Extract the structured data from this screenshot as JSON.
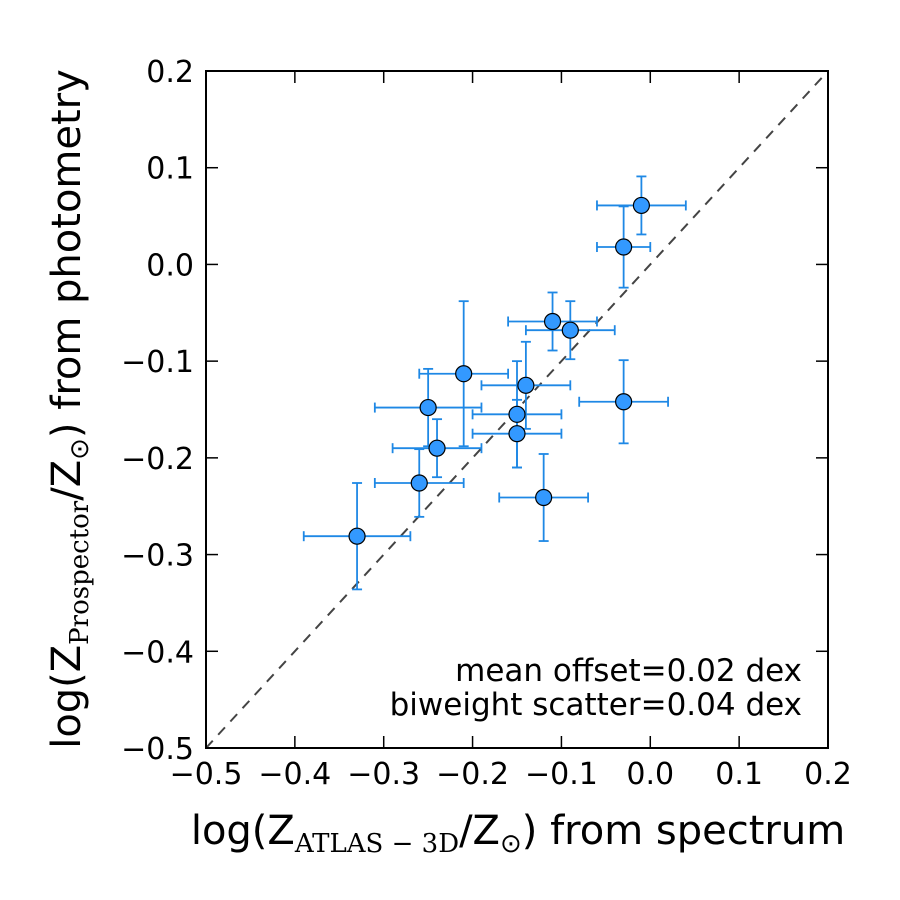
{
  "chart_data": {
    "type": "scatter",
    "xlabel": {
      "prefix": "log(Z",
      "subscript": "ATLAS − 3D",
      "suffix": "/Z",
      "sun_symbol": "⊙",
      "tail": ") from spectrum"
    },
    "ylabel": {
      "prefix": "log(Z",
      "subscript": "Prospector",
      "suffix": "/Z",
      "sun_symbol": "⊙",
      "tail": ") from photometry"
    },
    "xlim": [
      -0.5,
      0.2
    ],
    "ylim": [
      -0.5,
      0.2
    ],
    "xticks": [
      -0.5,
      -0.4,
      -0.3,
      -0.2,
      -0.1,
      0.0,
      0.1,
      0.2
    ],
    "xtick_labels": [
      "−0.5",
      "−0.4",
      "−0.3",
      "−0.2",
      "−0.1",
      "0.0",
      "0.1",
      "0.2"
    ],
    "yticks": [
      -0.5,
      -0.4,
      -0.3,
      -0.2,
      -0.1,
      0.0,
      0.1,
      0.2
    ],
    "ytick_labels": [
      "−0.5",
      "−0.4",
      "−0.3",
      "−0.2",
      "−0.1",
      "0.0",
      "0.1",
      "0.2"
    ],
    "one_to_one_line": true,
    "annotations": [
      "mean offset=0.02 dex",
      "biweight scatter=0.04 dex"
    ],
    "colors": {
      "point": "#3399ff",
      "errorbar": "#1e88e5",
      "edge": "#000000",
      "reference": "#444444"
    },
    "points": [
      {
        "x": -0.01,
        "y": 0.061,
        "xerr": 0.05,
        "yerr": 0.03
      },
      {
        "x": -0.03,
        "y": 0.018,
        "xerr": 0.03,
        "yerr": 0.042
      },
      {
        "x": -0.11,
        "y": -0.059,
        "xerr": 0.05,
        "yerr": 0.03
      },
      {
        "x": -0.09,
        "y": -0.068,
        "xerr": 0.05,
        "yerr": 0.03
      },
      {
        "x": -0.21,
        "y": -0.113,
        "xerr": 0.05,
        "yerr": 0.075
      },
      {
        "x": -0.14,
        "y": -0.125,
        "xerr": 0.05,
        "yerr": 0.045
      },
      {
        "x": -0.03,
        "y": -0.142,
        "xerr": 0.05,
        "yerr": 0.043
      },
      {
        "x": -0.25,
        "y": -0.148,
        "xerr": 0.06,
        "yerr": 0.04
      },
      {
        "x": -0.15,
        "y": -0.155,
        "xerr": 0.05,
        "yerr": 0.055
      },
      {
        "x": -0.15,
        "y": -0.175,
        "xerr": 0.05,
        "yerr": 0.035
      },
      {
        "x": -0.24,
        "y": -0.19,
        "xerr": 0.05,
        "yerr": 0.03
      },
      {
        "x": -0.26,
        "y": -0.226,
        "xerr": 0.05,
        "yerr": 0.035
      },
      {
        "x": -0.12,
        "y": -0.241,
        "xerr": 0.05,
        "yerr": 0.045
      },
      {
        "x": -0.33,
        "y": -0.281,
        "xerr": 0.06,
        "yerr": 0.055
      }
    ]
  }
}
